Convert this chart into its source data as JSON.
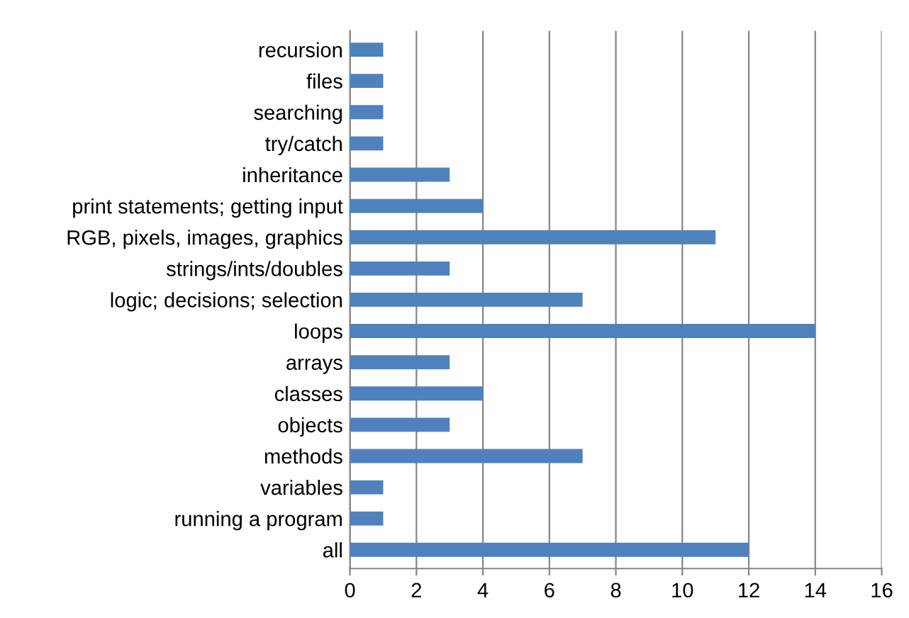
{
  "chart_data": {
    "type": "bar",
    "orientation": "horizontal",
    "categories": [
      "recursion",
      "files",
      "searching",
      "try/catch",
      "inheritance",
      "print statements; getting input",
      "RGB, pixels, images, graphics",
      "strings/ints/doubles",
      "logic; decisions; selection",
      "loops",
      "arrays",
      "classes",
      "objects",
      "methods",
      "variables",
      "running a program",
      "all"
    ],
    "values": [
      1,
      1,
      1,
      1,
      3,
      4,
      11,
      3,
      7,
      14,
      3,
      4,
      3,
      7,
      1,
      1,
      12
    ],
    "color": "#4f81bd",
    "xlim": [
      0,
      16
    ],
    "xticks": [
      0,
      2,
      4,
      6,
      8,
      10,
      12,
      14,
      16
    ],
    "grid": "x"
  }
}
